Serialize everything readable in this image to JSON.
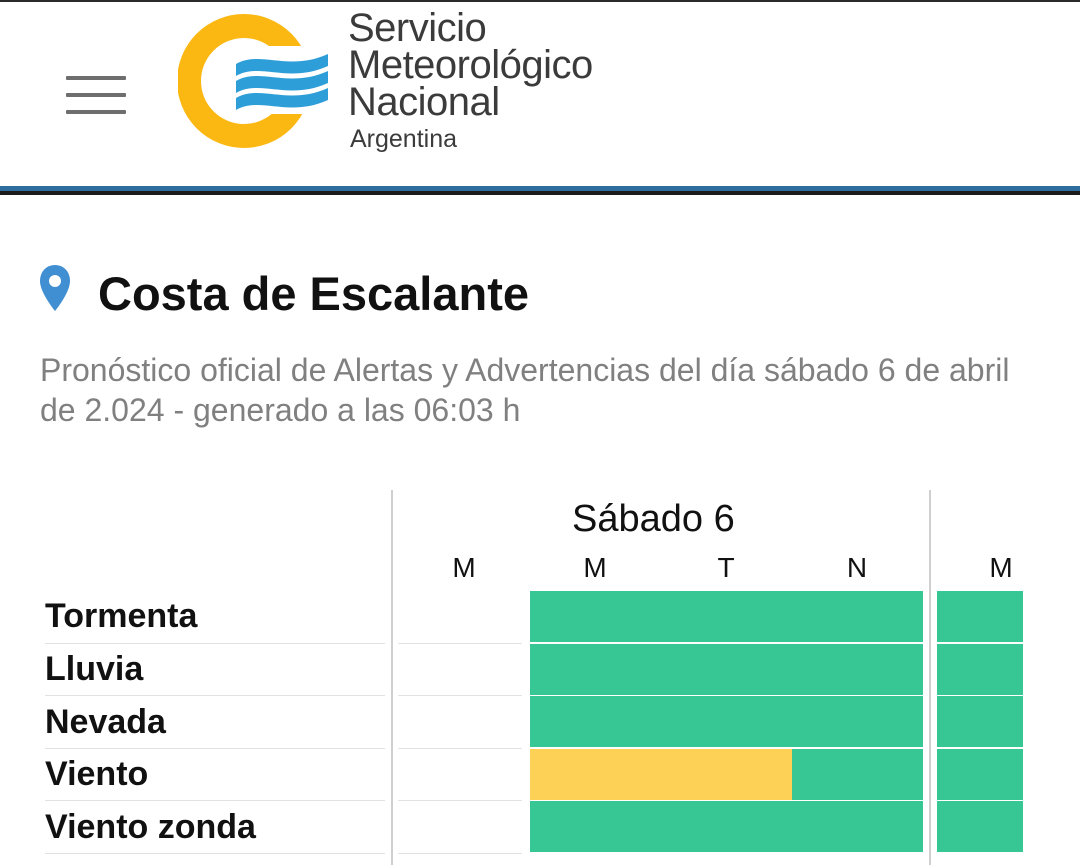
{
  "header": {
    "menu_icon": "hamburger-menu-icon",
    "logo_icon": "smn-sun-flag-logo",
    "logo_lines": [
      "Servicio",
      "Meteorológico",
      "Nacional"
    ],
    "logo_country": "Argentina",
    "colors": {
      "logo_yellow": "#fbb813",
      "logo_blue": "#2e9ed9",
      "rule_blue": "#2e6e9e"
    }
  },
  "location": {
    "pin_icon": "location-pin-icon",
    "name": "Costa de Escalante",
    "subtitle": "Pronóstico oficial de Alertas y Advertencias del día sábado 6 de abril de 2.024 - generado a las 06:03 h"
  },
  "forecast": {
    "day_label": "Sábado 6",
    "periods": [
      "M",
      "M",
      "T",
      "N",
      "M"
    ],
    "status_colors": {
      "green": "#36c795",
      "yellow": "#fdd155"
    },
    "rows": [
      {
        "label": "Tormenta",
        "cells": [
          "none",
          "green",
          "green",
          "green",
          "green"
        ]
      },
      {
        "label": "Lluvia",
        "cells": [
          "none",
          "green",
          "green",
          "green",
          "green"
        ]
      },
      {
        "label": "Nevada",
        "cells": [
          "none",
          "green",
          "green",
          "green",
          "green"
        ]
      },
      {
        "label": "Viento",
        "cells": [
          "none",
          "yellow",
          "yellow",
          "green",
          "green"
        ]
      },
      {
        "label": "Viento zonda",
        "cells": [
          "none",
          "green",
          "green",
          "green",
          "green"
        ]
      }
    ]
  }
}
